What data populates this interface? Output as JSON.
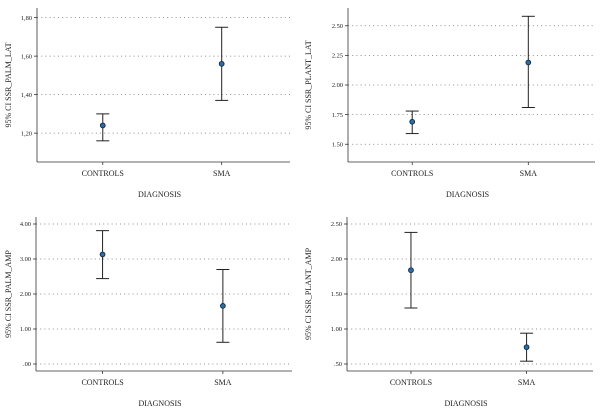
{
  "chart_data": [
    {
      "type": "errorbar",
      "xlabel": "DIAGNOSIS",
      "ylabel": "95% CI SSR_PALM_LAT",
      "categories": [
        "CONTROLS",
        "SMA"
      ],
      "series": [
        {
          "mean": [
            1.24,
            1.56
          ],
          "lower": [
            1.16,
            1.37
          ],
          "upper": [
            1.3,
            1.75
          ]
        }
      ],
      "ylim": [
        1.05,
        1.85
      ],
      "yticks": [
        1.2,
        1.4,
        1.6,
        1.8
      ],
      "ytick_labels": [
        "1,20",
        "1,40",
        "1,60",
        "1,80"
      ],
      "grid": true,
      "colors": {
        "marker": "#2d6ba3",
        "marker_edge": "#0c2a45"
      }
    },
    {
      "type": "errorbar",
      "xlabel": "DIAGNOSIS",
      "ylabel": "95% CI SSR_PLANT_LAT",
      "categories": [
        "CONTROLS",
        "SMA"
      ],
      "series": [
        {
          "mean": [
            1.69,
            2.19
          ],
          "lower": [
            1.59,
            1.81
          ],
          "upper": [
            1.78,
            2.58
          ]
        }
      ],
      "ylim": [
        1.35,
        2.65
      ],
      "yticks": [
        1.5,
        1.75,
        2.0,
        2.25,
        2.5
      ],
      "ytick_labels": [
        "1.50",
        "1.75",
        "2.00",
        "2.25",
        "2.50"
      ],
      "grid": true,
      "colors": {
        "marker": "#2d6ba3",
        "marker_edge": "#0c2a45"
      }
    },
    {
      "type": "errorbar",
      "xlabel": "DIAGNOSIS",
      "ylabel": "95% CI SSR_PALM_AMP",
      "categories": [
        "CONTROLS",
        "SMA"
      ],
      "series": [
        {
          "mean": [
            3.13,
            1.66
          ],
          "lower": [
            2.44,
            0.62
          ],
          "upper": [
            3.81,
            2.7
          ]
        }
      ],
      "ylim": [
        -0.2,
        4.2
      ],
      "yticks": [
        0,
        1,
        2,
        3,
        4
      ],
      "ytick_labels": [
        ".00",
        "1.00",
        "2.00",
        "3.00",
        "4.00"
      ],
      "grid": true,
      "colors": {
        "marker": "#2d6ba3",
        "marker_edge": "#0c2a45"
      }
    },
    {
      "type": "errorbar",
      "xlabel": "DIAGNOSIS",
      "ylabel": "95% CI SSR_PLANT_AMP",
      "categories": [
        "CONTROLS",
        "SMA"
      ],
      "series": [
        {
          "mean": [
            1.84,
            0.74
          ],
          "lower": [
            1.3,
            0.54
          ],
          "upper": [
            2.38,
            0.94
          ]
        }
      ],
      "ylim": [
        0.4,
        2.6
      ],
      "yticks": [
        0.5,
        1.0,
        1.5,
        2.0,
        2.5
      ],
      "ytick_labels": [
        ".50",
        "1.00",
        "1.50",
        "2.00",
        "2.50"
      ],
      "grid": true,
      "colors": {
        "marker": "#2d6ba3",
        "marker_edge": "#0c2a45"
      }
    }
  ]
}
